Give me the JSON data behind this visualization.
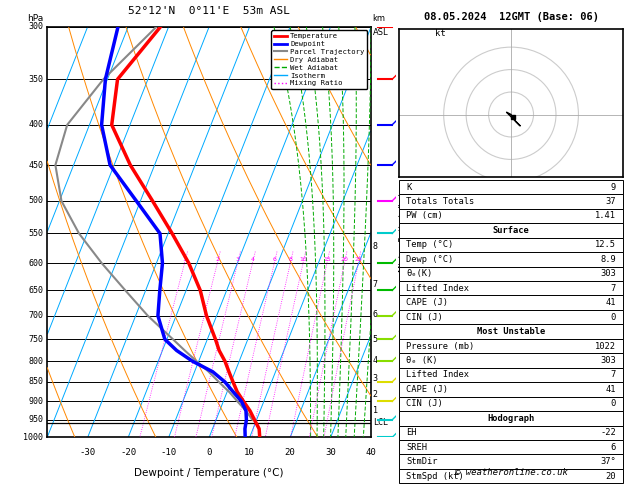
{
  "title_left": "52°12'N  0°11'E  53m ASL",
  "title_right": "08.05.2024  12GMT (Base: 06)",
  "xlabel": "Dewpoint / Temperature (°C)",
  "pressure_ticks": [
    300,
    350,
    400,
    450,
    500,
    550,
    600,
    650,
    700,
    750,
    800,
    850,
    900,
    950,
    1000
  ],
  "temp_ticks": [
    -30,
    -20,
    -10,
    0,
    10,
    20,
    30,
    40
  ],
  "P_min": 300,
  "P_max": 1000,
  "T_min": -40,
  "T_max": 40,
  "skew": 40,
  "temperature_profile": {
    "pressure": [
      1000,
      975,
      950,
      925,
      900,
      875,
      850,
      825,
      800,
      775,
      750,
      700,
      650,
      600,
      550,
      500,
      450,
      400,
      350,
      300
    ],
    "temp": [
      12.5,
      11.5,
      9.5,
      7.5,
      5.0,
      2.5,
      0.5,
      -1.5,
      -3.5,
      -6.0,
      -8.0,
      -12.5,
      -16.5,
      -22.0,
      -29.0,
      -37.0,
      -46.0,
      -54.5,
      -57.5,
      -52.0
    ],
    "color": "#ff0000",
    "linewidth": 2.5
  },
  "dewpoint_profile": {
    "pressure": [
      1000,
      975,
      950,
      925,
      900,
      875,
      850,
      825,
      800,
      775,
      750,
      700,
      650,
      600,
      550,
      500,
      450,
      400,
      350,
      300
    ],
    "temp": [
      8.9,
      8.0,
      7.5,
      6.5,
      4.5,
      1.5,
      -1.5,
      -5.5,
      -11.5,
      -16.5,
      -20.5,
      -24.5,
      -26.5,
      -28.5,
      -32.0,
      -41.0,
      -51.0,
      -57.0,
      -60.5,
      -62.5
    ],
    "color": "#0000ff",
    "linewidth": 2.5
  },
  "parcel_trajectory": {
    "pressure": [
      950,
      925,
      900,
      875,
      850,
      825,
      800,
      775,
      750,
      700,
      650,
      600,
      550,
      500,
      450,
      400,
      350,
      300
    ],
    "temp": [
      9.0,
      6.5,
      3.5,
      0.5,
      -3.0,
      -6.5,
      -10.5,
      -14.5,
      -18.5,
      -27.0,
      -35.0,
      -43.5,
      -52.0,
      -59.5,
      -64.5,
      -65.5,
      -61.0,
      -53.0
    ],
    "color": "#888888",
    "linewidth": 1.5
  },
  "lcl_pressure": 958,
  "km_axis_labels": [
    "8",
    "7",
    "6",
    "5",
    "4",
    "3",
    "2",
    "1",
    "LCL"
  ],
  "km_axis_pressures": [
    572,
    638,
    697,
    751,
    797,
    841,
    883,
    923,
    958
  ],
  "isotherm_color": "#00aaff",
  "dry_adiabat_color": "#ff8800",
  "wet_adiabat_color": "#00aa00",
  "mixing_ratio_color": "#ff00ff",
  "mixing_ratio_values": [
    1,
    2,
    3,
    4,
    6,
    8,
    10,
    15,
    20,
    25
  ],
  "copyright": "© weatheronline.co.uk",
  "stats": {
    "K": 9,
    "Totals_Totals": 37,
    "PW_cm": "1.41",
    "Surface_Temp": "12.5",
    "Surface_Dewp": "8.9",
    "Surface_theta_e": 303,
    "Surface_LI": 7,
    "Surface_CAPE": 41,
    "Surface_CIN": 0,
    "MU_Pressure": 1022,
    "MU_theta_e": 303,
    "MU_LI": 7,
    "MU_CAPE": 41,
    "MU_CIN": 0,
    "Hodo_EH": -22,
    "Hodo_SREH": 6,
    "Hodo_StmDir": "37°",
    "Hodo_StmSpd": 20
  },
  "hodo_u": [
    1,
    2,
    4,
    3,
    2,
    1,
    0,
    -1,
    -2,
    0
  ],
  "hodo_v": [
    -1,
    -3,
    -5,
    -4,
    -3,
    -2,
    -1,
    0,
    1,
    0
  ],
  "wind_colors_by_pressure": {
    "300": "#ff0000",
    "350": "#ff0000",
    "400": "#0000ff",
    "450": "#0000ff",
    "500": "#ff00ff",
    "550": "#00ffff",
    "600": "#00cc00",
    "650": "#00cc00",
    "700": "#88ff00",
    "750": "#88ff00",
    "800": "#88ff00",
    "850": "#ffff00",
    "900": "#ffff00",
    "950": "#00ffff",
    "1000": "#00ffff"
  }
}
